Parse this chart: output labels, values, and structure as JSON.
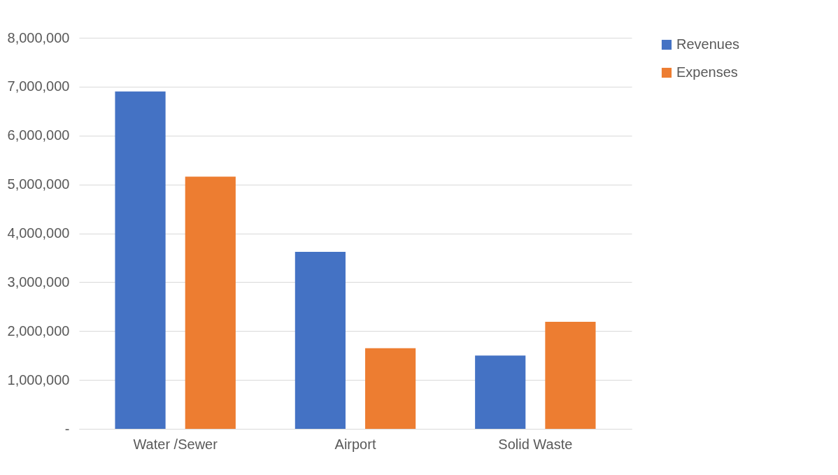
{
  "chart_data": {
    "type": "bar",
    "categories": [
      "Water /Sewer",
      "Airport",
      "Solid Waste"
    ],
    "series": [
      {
        "name": "Revenues",
        "color": "#4472c4",
        "values": [
          6900000,
          3620000,
          1500000
        ]
      },
      {
        "name": "Expenses",
        "color": "#ed7d31",
        "values": [
          5160000,
          1650000,
          2190000
        ]
      }
    ],
    "ylim": [
      0,
      8000000
    ],
    "yticks": [
      {
        "value": 0,
        "label": "-"
      },
      {
        "value": 1000000,
        "label": "1,000,000"
      },
      {
        "value": 2000000,
        "label": "2,000,000"
      },
      {
        "value": 3000000,
        "label": "3,000,000"
      },
      {
        "value": 4000000,
        "label": "4,000,000"
      },
      {
        "value": 5000000,
        "label": "5,000,000"
      },
      {
        "value": 6000000,
        "label": "6,000,000"
      },
      {
        "value": 7000000,
        "label": "7,000,000"
      },
      {
        "value": 8000000,
        "label": "8,000,000"
      }
    ],
    "grid": "y",
    "legend": "right"
  }
}
